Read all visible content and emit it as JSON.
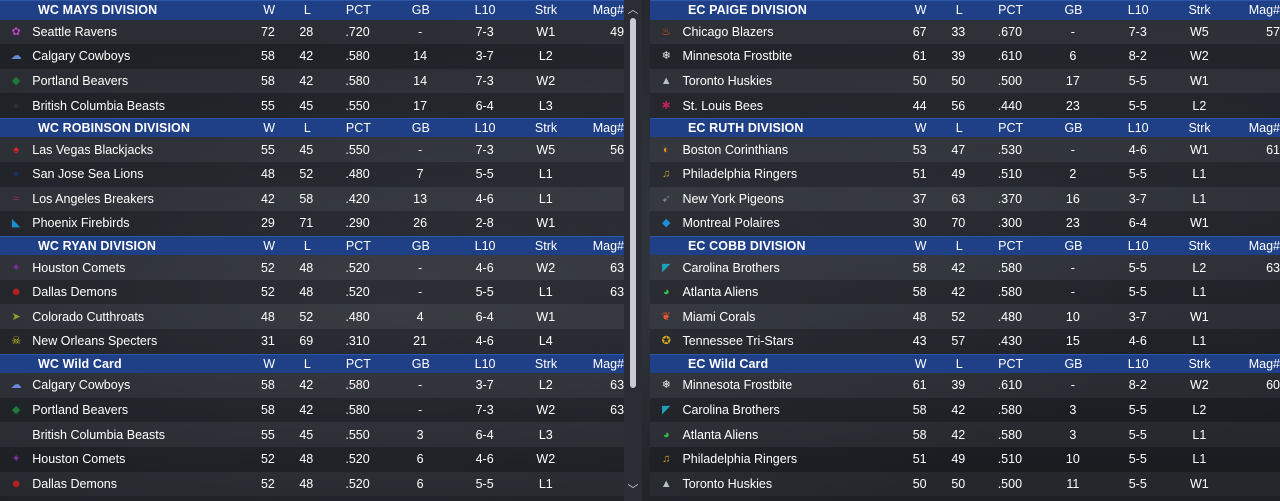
{
  "columns": {
    "w": "W",
    "l": "L",
    "pct": "PCT",
    "gb": "GB",
    "l10": "L10",
    "strk": "Strk",
    "mag": "Mag#"
  },
  "left": [
    {
      "name": "WC MAYS DIVISION",
      "rows": [
        {
          "team": "Seattle Ravens",
          "icon": "paw-icon",
          "color": "#c040c0",
          "glyph": "✿",
          "w": "72",
          "l": "28",
          "pct": ".720",
          "gb": "-",
          "l10": "7-3",
          "strk": "W1",
          "mag": "49"
        },
        {
          "team": "Calgary Cowboys",
          "icon": "cowboy-hat-icon",
          "color": "#6a88d8",
          "glyph": "☁",
          "w": "58",
          "l": "42",
          "pct": ".580",
          "gb": "14",
          "l10": "3-7",
          "strk": "L2",
          "mag": ""
        },
        {
          "team": "Portland Beavers",
          "icon": "beaver-icon",
          "color": "#1f7a3a",
          "glyph": "◆",
          "w": "58",
          "l": "42",
          "pct": ".580",
          "gb": "14",
          "l10": "7-3",
          "strk": "W2",
          "mag": ""
        },
        {
          "team": "British Columbia Beasts",
          "icon": "beast-icon",
          "color": "#2a2f38",
          "glyph": "●",
          "w": "55",
          "l": "45",
          "pct": ".550",
          "gb": "17",
          "l10": "6-4",
          "strk": "L3",
          "mag": ""
        }
      ]
    },
    {
      "name": "WC ROBINSON DIVISION",
      "rows": [
        {
          "team": "Las Vegas Blackjacks",
          "icon": "spade-icon",
          "color": "#e02020",
          "glyph": "♠",
          "w": "55",
          "l": "45",
          "pct": ".550",
          "gb": "-",
          "l10": "7-3",
          "strk": "W5",
          "mag": "56"
        },
        {
          "team": "San Jose Sea Lions",
          "icon": "sea-lion-icon",
          "color": "#18305e",
          "glyph": "●",
          "w": "48",
          "l": "52",
          "pct": ".480",
          "gb": "7",
          "l10": "5-5",
          "strk": "L1",
          "mag": ""
        },
        {
          "team": "Los Angeles Breakers",
          "icon": "wave-icon",
          "color": "#a03050",
          "glyph": "≈",
          "w": "42",
          "l": "58",
          "pct": ".420",
          "gb": "13",
          "l10": "4-6",
          "strk": "L1",
          "mag": ""
        },
        {
          "team": "Phoenix Firebirds",
          "icon": "firebird-icon",
          "color": "#1a8fd0",
          "glyph": "◣",
          "w": "29",
          "l": "71",
          "pct": ".290",
          "gb": "26",
          "l10": "2-8",
          "strk": "W1",
          "mag": ""
        }
      ]
    },
    {
      "name": "WC RYAN DIVISION",
      "rows": [
        {
          "team": "Houston Comets",
          "icon": "comet-icon",
          "color": "#7a30a0",
          "glyph": "✦",
          "w": "52",
          "l": "48",
          "pct": ".520",
          "gb": "-",
          "l10": "4-6",
          "strk": "W2",
          "mag": "63"
        },
        {
          "team": "Dallas Demons",
          "icon": "demon-icon",
          "color": "#c02020",
          "glyph": "☻",
          "w": "52",
          "l": "48",
          "pct": ".520",
          "gb": "-",
          "l10": "5-5",
          "strk": "L1",
          "mag": "63"
        },
        {
          "team": "Colorado Cutthroats",
          "icon": "fish-icon",
          "color": "#8aa030",
          "glyph": "➤",
          "w": "48",
          "l": "52",
          "pct": ".480",
          "gb": "4",
          "l10": "6-4",
          "strk": "W1",
          "mag": ""
        },
        {
          "team": "New Orleans Specters",
          "icon": "skull-icon",
          "color": "#c8c020",
          "glyph": "☠",
          "w": "31",
          "l": "69",
          "pct": ".310",
          "gb": "21",
          "l10": "4-6",
          "strk": "L4",
          "mag": ""
        }
      ]
    },
    {
      "name": "WC  Wild Card",
      "rows": [
        {
          "team": "Calgary Cowboys",
          "icon": "cowboy-hat-icon",
          "color": "#6a88d8",
          "glyph": "☁",
          "w": "58",
          "l": "42",
          "pct": ".580",
          "gb": "-",
          "l10": "3-7",
          "strk": "L2",
          "mag": "63"
        },
        {
          "team": "Portland Beavers",
          "icon": "beaver-icon",
          "color": "#1f7a3a",
          "glyph": "◆",
          "w": "58",
          "l": "42",
          "pct": ".580",
          "gb": "-",
          "l10": "7-3",
          "strk": "W2",
          "mag": "63"
        },
        {
          "team": "British Columbia Beasts",
          "icon": "beast-icon",
          "color": "#2a2f38",
          "glyph": "●",
          "w": "55",
          "l": "45",
          "pct": ".550",
          "gb": "3",
          "l10": "6-4",
          "strk": "L3",
          "mag": ""
        },
        {
          "team": "Houston Comets",
          "icon": "comet-icon",
          "color": "#7a30a0",
          "glyph": "✦",
          "w": "52",
          "l": "48",
          "pct": ".520",
          "gb": "6",
          "l10": "4-6",
          "strk": "W2",
          "mag": ""
        },
        {
          "team": "Dallas Demons",
          "icon": "demon-icon",
          "color": "#c02020",
          "glyph": "☻",
          "w": "52",
          "l": "48",
          "pct": ".520",
          "gb": "6",
          "l10": "5-5",
          "strk": "L1",
          "mag": ""
        }
      ]
    }
  ],
  "right": [
    {
      "name": "EC PAIGE DIVISION",
      "rows": [
        {
          "team": "Chicago Blazers",
          "icon": "flame-icon",
          "color": "#e85018",
          "glyph": "♨",
          "w": "67",
          "l": "33",
          "pct": ".670",
          "gb": "-",
          "l10": "7-3",
          "strk": "W5",
          "mag": "57"
        },
        {
          "team": "Minnesota Frostbite",
          "icon": "snowflake-icon",
          "color": "#e8e8e8",
          "glyph": "❄",
          "w": "61",
          "l": "39",
          "pct": ".610",
          "gb": "6",
          "l10": "8-2",
          "strk": "W2",
          "mag": ""
        },
        {
          "team": "Toronto Huskies",
          "icon": "husky-icon",
          "color": "#b8c0c8",
          "glyph": "▲",
          "w": "50",
          "l": "50",
          "pct": ".500",
          "gb": "17",
          "l10": "5-5",
          "strk": "W1",
          "mag": ""
        },
        {
          "team": "St. Louis Bees",
          "icon": "bee-icon",
          "color": "#c0205a",
          "glyph": "✱",
          "w": "44",
          "l": "56",
          "pct": ".440",
          "gb": "23",
          "l10": "5-5",
          "strk": "L2",
          "mag": ""
        }
      ]
    },
    {
      "name": "EC RUTH DIVISION",
      "rows": [
        {
          "team": "Boston Corinthians",
          "icon": "helmet-icon",
          "color": "#e88a18",
          "glyph": "◐",
          "w": "53",
          "l": "47",
          "pct": ".530",
          "gb": "-",
          "l10": "4-6",
          "strk": "W1",
          "mag": "61"
        },
        {
          "team": "Philadelphia Ringers",
          "icon": "bell-icon",
          "color": "#c89a20",
          "glyph": "♫",
          "w": "51",
          "l": "49",
          "pct": ".510",
          "gb": "2",
          "l10": "5-5",
          "strk": "L1",
          "mag": ""
        },
        {
          "team": "New York Pigeons",
          "icon": "pigeon-icon",
          "color": "#708090",
          "glyph": "➹",
          "w": "37",
          "l": "63",
          "pct": ".370",
          "gb": "16",
          "l10": "3-7",
          "strk": "L1",
          "mag": ""
        },
        {
          "team": "Montreal Polaires",
          "icon": "polar-bear-icon",
          "color": "#1a90d8",
          "glyph": "◆",
          "w": "30",
          "l": "70",
          "pct": ".300",
          "gb": "23",
          "l10": "6-4",
          "strk": "W1",
          "mag": ""
        }
      ]
    },
    {
      "name": "EC COBB DIVISION",
      "rows": [
        {
          "team": "Carolina Brothers",
          "icon": "shield-icon",
          "color": "#20a0b8",
          "glyph": "◤",
          "w": "58",
          "l": "42",
          "pct": ".580",
          "gb": "-",
          "l10": "5-5",
          "strk": "L2",
          "mag": "63"
        },
        {
          "team": "Atlanta Aliens",
          "icon": "alien-icon",
          "color": "#30c040",
          "glyph": "◕",
          "w": "58",
          "l": "42",
          "pct": ".580",
          "gb": "-",
          "l10": "5-5",
          "strk": "L1",
          "mag": ""
        },
        {
          "team": "Miami Corals",
          "icon": "coral-icon",
          "color": "#e85830",
          "glyph": "❦",
          "w": "48",
          "l": "52",
          "pct": ".480",
          "gb": "10",
          "l10": "3-7",
          "strk": "W1",
          "mag": ""
        },
        {
          "team": "Tennessee Tri-Stars",
          "icon": "tri-star-icon",
          "color": "#d8a820",
          "glyph": "✪",
          "w": "43",
          "l": "57",
          "pct": ".430",
          "gb": "15",
          "l10": "4-6",
          "strk": "L1",
          "mag": ""
        }
      ]
    },
    {
      "name": "EC  Wild Card",
      "rows": [
        {
          "team": "Minnesota Frostbite",
          "icon": "snowflake-icon",
          "color": "#e8e8e8",
          "glyph": "❄",
          "w": "61",
          "l": "39",
          "pct": ".610",
          "gb": "-",
          "l10": "8-2",
          "strk": "W2",
          "mag": "60"
        },
        {
          "team": "Carolina Brothers",
          "icon": "shield-icon",
          "color": "#20a0b8",
          "glyph": "◤",
          "w": "58",
          "l": "42",
          "pct": ".580",
          "gb": "3",
          "l10": "5-5",
          "strk": "L2",
          "mag": ""
        },
        {
          "team": "Atlanta Aliens",
          "icon": "alien-icon",
          "color": "#30c040",
          "glyph": "◕",
          "w": "58",
          "l": "42",
          "pct": ".580",
          "gb": "3",
          "l10": "5-5",
          "strk": "L1",
          "mag": ""
        },
        {
          "team": "Philadelphia Ringers",
          "icon": "bell-icon",
          "color": "#c89a20",
          "glyph": "♫",
          "w": "51",
          "l": "49",
          "pct": ".510",
          "gb": "10",
          "l10": "5-5",
          "strk": "L1",
          "mag": ""
        },
        {
          "team": "Toronto Huskies",
          "icon": "husky-icon",
          "color": "#b8c0c8",
          "glyph": "▲",
          "w": "50",
          "l": "50",
          "pct": ".500",
          "gb": "11",
          "l10": "5-5",
          "strk": "W1",
          "mag": ""
        }
      ]
    }
  ]
}
